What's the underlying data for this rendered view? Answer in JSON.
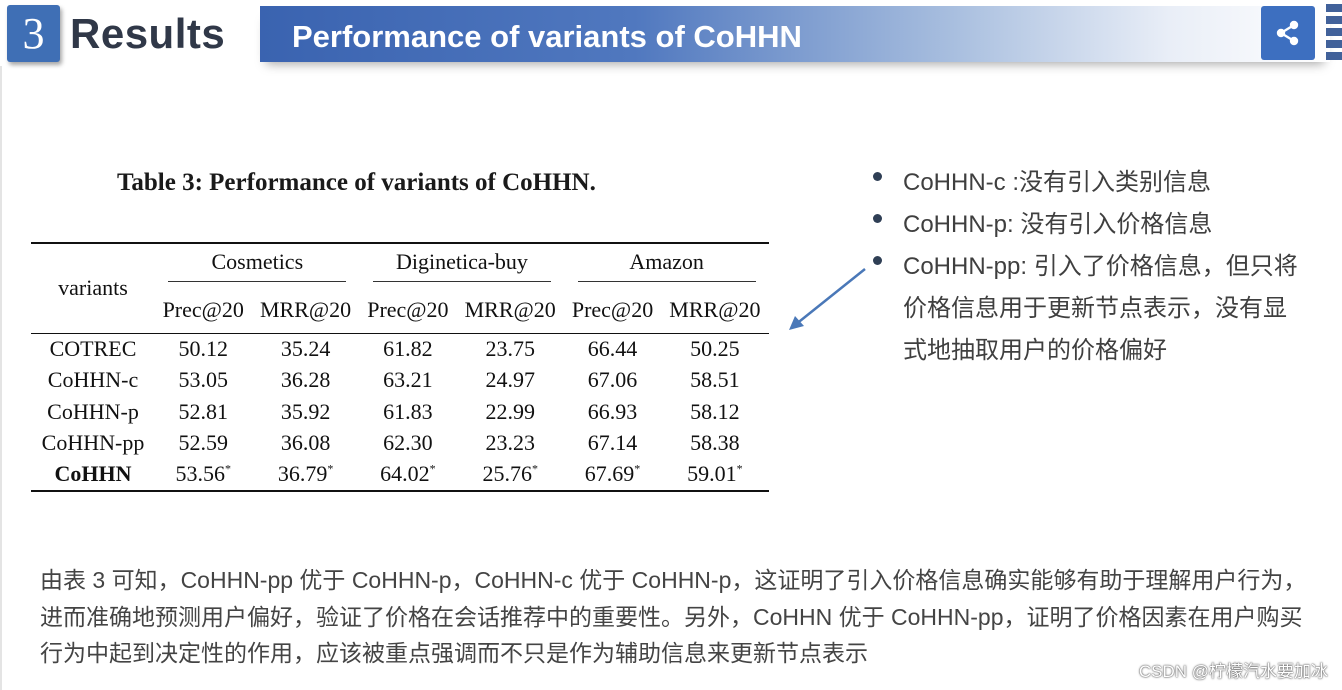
{
  "header": {
    "section_number": "3",
    "section_title": "Results",
    "banner_title": "Performance of variants of CoHHN",
    "icons": {
      "share": "share-icon"
    }
  },
  "table": {
    "caption": "Table 3: Performance of variants of CoHHN.",
    "row_header": "variants",
    "datasets": [
      "Cosmetics",
      "Diginetica-buy",
      "Amazon"
    ],
    "metrics": [
      "Prec@20",
      "MRR@20",
      "Prec@20",
      "MRR@20",
      "Prec@20",
      "MRR@20"
    ],
    "rows": [
      {
        "name": "COTREC",
        "values": [
          "50.12",
          "35.24",
          "61.82",
          "23.75",
          "66.44",
          "50.25"
        ]
      },
      {
        "name": "CoHHN-c",
        "values": [
          "53.05",
          "36.28",
          "63.21",
          "24.97",
          "67.06",
          "58.51"
        ]
      },
      {
        "name": "CoHHN-p",
        "values": [
          "52.81",
          "35.92",
          "61.83",
          "22.99",
          "66.93",
          "58.12"
        ]
      },
      {
        "name": "CoHHN-pp",
        "values": [
          "52.59",
          "36.08",
          "62.30",
          "23.23",
          "67.14",
          "58.38"
        ]
      },
      {
        "name": "CoHHN",
        "values": [
          "53.56",
          "36.79",
          "64.02",
          "25.76",
          "67.69",
          "59.01"
        ],
        "marker": "*"
      }
    ]
  },
  "notes": [
    "CoHHN-c :没有引入类别信息",
    "CoHHN-p: 没有引入价格信息",
    "CoHHN-pp: 引入了价格信息，但只将价格信息用于更新节点表示，没有显式地抽取用户的价格偏好"
  ],
  "paragraph": "由表 3 可知，CoHHN-pp 优于 CoHHN-p，CoHHN-c 优于 CoHHN-p，这证明了引入价格信息确实能够有助于理解用户行为，进而准确地预测用户偏好，验证了价格在会话推荐中的重要性。另外，CoHHN 优于 CoHHN-pp，证明了价格因素在用户购买行为中起到决定性的作用，应该被重点强调而不只是作为辅助信息来更新节点表示",
  "watermark": "CSDN @柠檬汽水要加冰",
  "colors": {
    "accent": "#3f6fb5",
    "arrow": "#4a78b8"
  }
}
